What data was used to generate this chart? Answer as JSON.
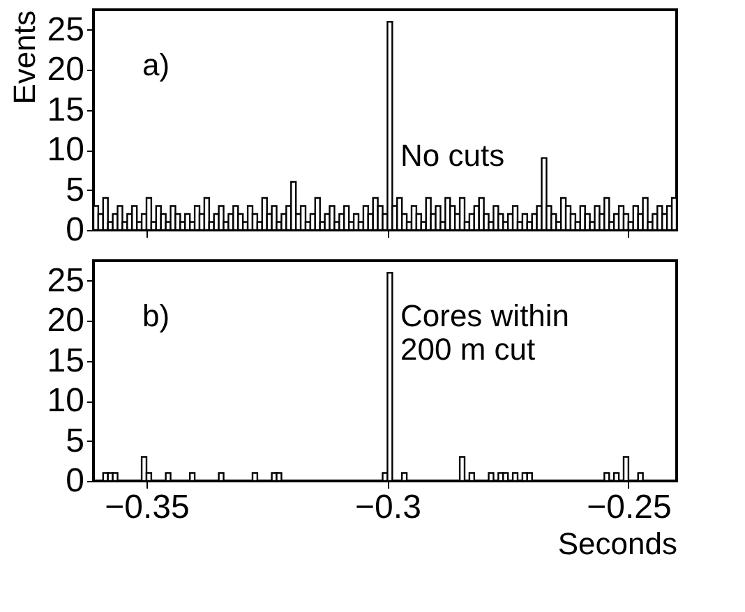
{
  "chart_data": [
    {
      "type": "histogram",
      "ylabel": "Events",
      "annotations": [
        "a)",
        "No cuts"
      ],
      "tick_labels": "y",
      "color": "#000000",
      "xlim": [
        -0.361,
        -0.24
      ],
      "ylim": [
        0,
        27.5
      ],
      "xticks": [
        -0.35,
        -0.3,
        -0.25
      ],
      "yticks": [
        0,
        5,
        10,
        15,
        20,
        25
      ],
      "bins": [
        -0.361,
        -0.36,
        -0.359,
        -0.358,
        -0.357,
        -0.356,
        -0.355,
        -0.354,
        -0.353,
        -0.352,
        -0.351,
        -0.35,
        -0.349,
        -0.348,
        -0.347,
        -0.346,
        -0.345,
        -0.344,
        -0.343,
        -0.342,
        -0.341,
        -0.34,
        -0.339,
        -0.338,
        -0.337,
        -0.336,
        -0.335,
        -0.334,
        -0.333,
        -0.332,
        -0.331,
        -0.33,
        -0.329,
        -0.328,
        -0.327,
        -0.326,
        -0.325,
        -0.324,
        -0.323,
        -0.322,
        -0.321,
        -0.32,
        -0.319,
        -0.318,
        -0.317,
        -0.316,
        -0.315,
        -0.314,
        -0.313,
        -0.312,
        -0.311,
        -0.31,
        -0.309,
        -0.308,
        -0.307,
        -0.306,
        -0.305,
        -0.304,
        -0.303,
        -0.302,
        -0.301,
        -0.3,
        -0.299,
        -0.298,
        -0.297,
        -0.296,
        -0.295,
        -0.294,
        -0.293,
        -0.292,
        -0.291,
        -0.29,
        -0.289,
        -0.288,
        -0.287,
        -0.286,
        -0.285,
        -0.284,
        -0.283,
        -0.282,
        -0.281,
        -0.28,
        -0.279,
        -0.278,
        -0.277,
        -0.276,
        -0.275,
        -0.274,
        -0.273,
        -0.272,
        -0.271,
        -0.27,
        -0.269,
        -0.268,
        -0.267,
        -0.266,
        -0.265,
        -0.264,
        -0.263,
        -0.262,
        -0.261,
        -0.26,
        -0.259,
        -0.258,
        -0.257,
        -0.256,
        -0.255,
        -0.254,
        -0.253,
        -0.252,
        -0.251,
        -0.25,
        -0.249,
        -0.248,
        -0.247,
        -0.246,
        -0.245,
        -0.244,
        -0.243,
        -0.242,
        -0.241,
        -0.24
      ],
      "values": [
        3,
        2,
        4,
        1,
        2,
        3,
        1,
        2,
        3,
        1,
        2,
        4,
        1,
        3,
        2,
        1,
        3,
        2,
        1,
        2,
        1,
        3,
        2,
        4,
        1,
        2,
        3,
        1,
        2,
        3,
        2,
        1,
        3,
        2,
        1,
        4,
        2,
        3,
        1,
        2,
        3,
        6,
        2,
        3,
        1,
        2,
        4,
        1,
        2,
        3,
        1,
        2,
        3,
        1,
        2,
        1,
        3,
        2,
        4,
        3,
        2,
        26,
        3,
        4,
        2,
        1,
        3,
        2,
        1,
        4,
        2,
        3,
        1,
        4,
        3,
        2,
        4,
        1,
        2,
        3,
        4,
        2,
        1,
        3,
        2,
        1,
        2,
        3,
        1,
        2,
        1,
        2,
        3,
        9,
        3,
        2,
        1,
        4,
        3,
        2,
        1,
        3,
        2,
        1,
        3,
        2,
        4,
        1,
        2,
        3,
        2,
        1,
        3,
        2,
        4,
        1,
        2,
        3,
        2,
        3,
        4
      ]
    },
    {
      "type": "histogram",
      "xlabel": "Seconds",
      "annotations": [
        "b)",
        "Cores within\n200 m cut"
      ],
      "color": "#000000",
      "xlim": [
        -0.361,
        -0.24
      ],
      "ylim": [
        0,
        27.5
      ],
      "xticks": [
        -0.35,
        -0.3,
        -0.25
      ],
      "yticks": [
        0,
        5,
        10,
        15,
        20,
        25
      ],
      "bins": [
        -0.361,
        -0.36,
        -0.359,
        -0.358,
        -0.357,
        -0.356,
        -0.355,
        -0.354,
        -0.353,
        -0.352,
        -0.351,
        -0.35,
        -0.349,
        -0.348,
        -0.347,
        -0.346,
        -0.345,
        -0.344,
        -0.343,
        -0.342,
        -0.341,
        -0.34,
        -0.339,
        -0.338,
        -0.337,
        -0.336,
        -0.335,
        -0.334,
        -0.333,
        -0.332,
        -0.331,
        -0.33,
        -0.329,
        -0.328,
        -0.327,
        -0.326,
        -0.325,
        -0.324,
        -0.323,
        -0.322,
        -0.321,
        -0.32,
        -0.319,
        -0.318,
        -0.317,
        -0.316,
        -0.315,
        -0.314,
        -0.313,
        -0.312,
        -0.311,
        -0.31,
        -0.309,
        -0.308,
        -0.307,
        -0.306,
        -0.305,
        -0.304,
        -0.303,
        -0.302,
        -0.301,
        -0.3,
        -0.299,
        -0.298,
        -0.297,
        -0.296,
        -0.295,
        -0.294,
        -0.293,
        -0.292,
        -0.291,
        -0.29,
        -0.289,
        -0.288,
        -0.287,
        -0.286,
        -0.285,
        -0.284,
        -0.283,
        -0.282,
        -0.281,
        -0.28,
        -0.279,
        -0.278,
        -0.277,
        -0.276,
        -0.275,
        -0.274,
        -0.273,
        -0.272,
        -0.271,
        -0.27,
        -0.269,
        -0.268,
        -0.267,
        -0.266,
        -0.265,
        -0.264,
        -0.263,
        -0.262,
        -0.261,
        -0.26,
        -0.259,
        -0.258,
        -0.257,
        -0.256,
        -0.255,
        -0.254,
        -0.253,
        -0.252,
        -0.251,
        -0.25,
        -0.249,
        -0.248,
        -0.247,
        -0.246,
        -0.245,
        -0.244,
        -0.243,
        -0.242,
        -0.241,
        -0.24
      ],
      "values": [
        0,
        0,
        1,
        1,
        1,
        0,
        0,
        0,
        0,
        0,
        3,
        1,
        0,
        0,
        0,
        1,
        0,
        0,
        0,
        0,
        1,
        0,
        0,
        0,
        0,
        0,
        1,
        0,
        0,
        0,
        0,
        0,
        0,
        1,
        0,
        0,
        0,
        1,
        1,
        0,
        0,
        0,
        0,
        0,
        0,
        0,
        0,
        0,
        0,
        0,
        0,
        0,
        0,
        0,
        0,
        0,
        0,
        0,
        0,
        0,
        1,
        26,
        0,
        0,
        1,
        0,
        0,
        0,
        0,
        0,
        0,
        0,
        0,
        0,
        0,
        0,
        3,
        0,
        1,
        0,
        0,
        0,
        1,
        0,
        1,
        1,
        0,
        1,
        0,
        1,
        1,
        0,
        0,
        0,
        0,
        0,
        0,
        0,
        0,
        0,
        0,
        0,
        0,
        0,
        0,
        0,
        1,
        0,
        1,
        0,
        3,
        0,
        0,
        1,
        0,
        0,
        0,
        0,
        0,
        0,
        0
      ]
    }
  ]
}
